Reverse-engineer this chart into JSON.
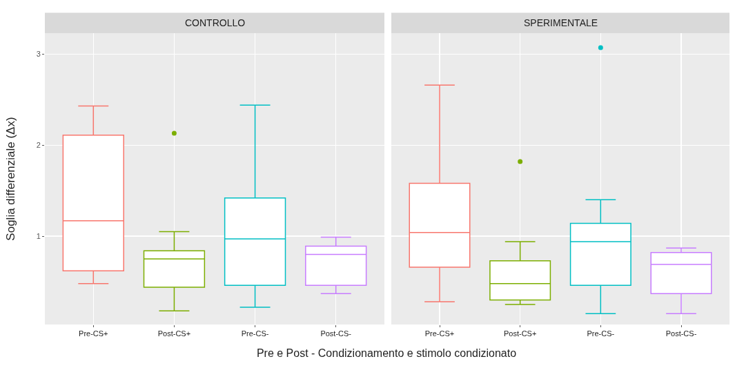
{
  "chart_data": [
    {
      "type": "box",
      "title": "CONTROLLO",
      "ylabel": "Soglia differenziale (Δx)",
      "xlabel": "Pre e Post - Condizionamento  e stimolo condizionato",
      "categories": [
        "Pre-CS+",
        "Post-CS+",
        "Pre-CS-",
        "Post-CS-"
      ],
      "colors": [
        "#f8766d",
        "#7cae00",
        "#00bfc4",
        "#c77cff"
      ],
      "ylim": [
        0.03,
        3.23
      ],
      "yticks": [
        1,
        2,
        3
      ],
      "grid": true,
      "boxes": [
        {
          "low": 0.48,
          "q1": 0.62,
          "median": 1.17,
          "q3": 2.11,
          "high": 2.43
        },
        {
          "low": 0.18,
          "q1": 0.44,
          "median": 0.75,
          "q3": 0.84,
          "high": 1.05,
          "outliers": [
            2.13
          ]
        },
        {
          "low": 0.22,
          "q1": 0.46,
          "median": 0.97,
          "q3": 1.42,
          "high": 2.44
        },
        {
          "low": 0.37,
          "q1": 0.46,
          "median": 0.8,
          "q3": 0.89,
          "high": 0.99
        }
      ]
    },
    {
      "type": "box",
      "title": "SPERIMENTALE",
      "categories": [
        "Pre-CS+",
        "Post-CS+",
        "Pre-CS-",
        "Post-CS-"
      ],
      "colors": [
        "#f8766d",
        "#7cae00",
        "#00bfc4",
        "#c77cff"
      ],
      "ylim": [
        0.03,
        3.23
      ],
      "yticks": [
        1,
        2,
        3
      ],
      "grid": true,
      "tick_labels": "x",
      "boxes": [
        {
          "low": 0.28,
          "q1": 0.66,
          "median": 1.04,
          "q3": 1.58,
          "high": 2.66
        },
        {
          "low": 0.25,
          "q1": 0.3,
          "median": 0.48,
          "q3": 0.73,
          "high": 0.94,
          "outliers": [
            1.82
          ]
        },
        {
          "low": 0.15,
          "q1": 0.46,
          "median": 0.94,
          "q3": 1.14,
          "high": 1.4,
          "outliers": [
            3.07
          ]
        },
        {
          "low": 0.15,
          "q1": 0.37,
          "median": 0.69,
          "q3": 0.82,
          "high": 0.87
        }
      ]
    }
  ]
}
